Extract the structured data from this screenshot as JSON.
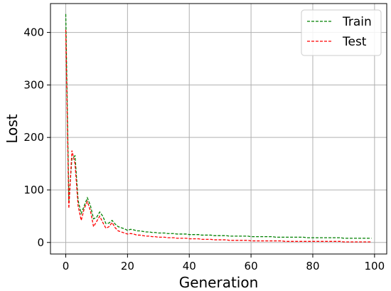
{
  "chart_data": {
    "type": "line",
    "title": "",
    "xlabel": "Generation",
    "ylabel": "Lost",
    "xlim": [
      -4.95,
      103.95
    ],
    "ylim": [
      -22,
      455
    ],
    "x_ticks": [
      0,
      20,
      40,
      60,
      80,
      100
    ],
    "y_ticks": [
      0,
      100,
      200,
      300,
      400
    ],
    "grid": true,
    "legend_position": "top-right",
    "series": [
      {
        "name": "Train",
        "color": "#008000",
        "line_style": "dashed",
        "x": [
          0,
          1,
          2,
          3,
          4,
          5,
          6,
          7,
          8,
          9,
          10,
          11,
          12,
          13,
          14,
          15,
          16,
          17,
          18,
          19,
          20,
          21,
          22,
          23,
          24,
          25,
          26,
          27,
          28,
          29,
          30,
          31,
          32,
          33,
          34,
          35,
          36,
          37,
          38,
          39,
          40,
          41,
          42,
          43,
          44,
          45,
          46,
          47,
          48,
          49,
          50,
          51,
          52,
          53,
          54,
          55,
          56,
          57,
          58,
          59,
          60,
          61,
          62,
          63,
          64,
          65,
          66,
          67,
          68,
          69,
          70,
          71,
          72,
          73,
          74,
          75,
          76,
          77,
          78,
          79,
          80,
          81,
          82,
          83,
          84,
          85,
          86,
          87,
          88,
          89,
          90,
          91,
          92,
          93,
          94,
          95,
          96,
          97,
          98,
          99
        ],
        "values": [
          435,
          80,
          160,
          165,
          80,
          55,
          70,
          85,
          70,
          45,
          48,
          58,
          50,
          36,
          37,
          42,
          35,
          30,
          28,
          26,
          23,
          25,
          24,
          22,
          22,
          21,
          20,
          20,
          19,
          19,
          18,
          18,
          18,
          17,
          17,
          17,
          16,
          16,
          16,
          16,
          15,
          15,
          15,
          15,
          14,
          14,
          14,
          14,
          13,
          13,
          13,
          13,
          13,
          12,
          12,
          12,
          12,
          12,
          12,
          12,
          11,
          11,
          11,
          11,
          11,
          11,
          11,
          11,
          10,
          10,
          10,
          10,
          10,
          10,
          10,
          10,
          10,
          10,
          9,
          9,
          9,
          9,
          9,
          9,
          9,
          9,
          9,
          9,
          9,
          9,
          8,
          8,
          8,
          8,
          8,
          8,
          8,
          8,
          8,
          8
        ]
      },
      {
        "name": "Test",
        "color": "#ff0000",
        "line_style": "dashed",
        "x": [
          0,
          1,
          2,
          3,
          4,
          5,
          6,
          7,
          8,
          9,
          10,
          11,
          12,
          13,
          14,
          15,
          16,
          17,
          18,
          19,
          20,
          21,
          22,
          23,
          24,
          25,
          26,
          27,
          28,
          29,
          30,
          31,
          32,
          33,
          34,
          35,
          36,
          37,
          38,
          39,
          40,
          41,
          42,
          43,
          44,
          45,
          46,
          47,
          48,
          49,
          50,
          51,
          52,
          53,
          54,
          55,
          56,
          57,
          58,
          59,
          60,
          61,
          62,
          63,
          64,
          65,
          66,
          67,
          68,
          69,
          70,
          71,
          72,
          73,
          74,
          75,
          76,
          77,
          78,
          79,
          80,
          81,
          82,
          83,
          84,
          85,
          86,
          87,
          88,
          89,
          90,
          91,
          92,
          93,
          94,
          95,
          96,
          97,
          98,
          99
        ],
        "values": [
          405,
          65,
          175,
          150,
          70,
          42,
          65,
          78,
          60,
          30,
          40,
          50,
          38,
          27,
          30,
          38,
          28,
          22,
          20,
          18,
          16,
          17,
          16,
          14,
          14,
          13,
          12,
          12,
          11,
          11,
          10,
          10,
          10,
          9,
          9,
          9,
          8,
          8,
          8,
          8,
          7,
          7,
          7,
          7,
          6,
          6,
          6,
          6,
          5,
          5,
          5,
          5,
          5,
          4,
          4,
          4,
          4,
          4,
          4,
          4,
          3,
          3,
          3,
          3,
          3,
          3,
          3,
          3,
          3,
          3,
          3,
          2,
          2,
          2,
          2,
          2,
          2,
          2,
          2,
          2,
          2,
          2,
          2,
          2,
          2,
          2,
          2,
          2,
          2,
          2,
          1,
          1,
          1,
          1,
          1,
          1,
          1,
          1,
          1,
          1
        ]
      }
    ]
  }
}
